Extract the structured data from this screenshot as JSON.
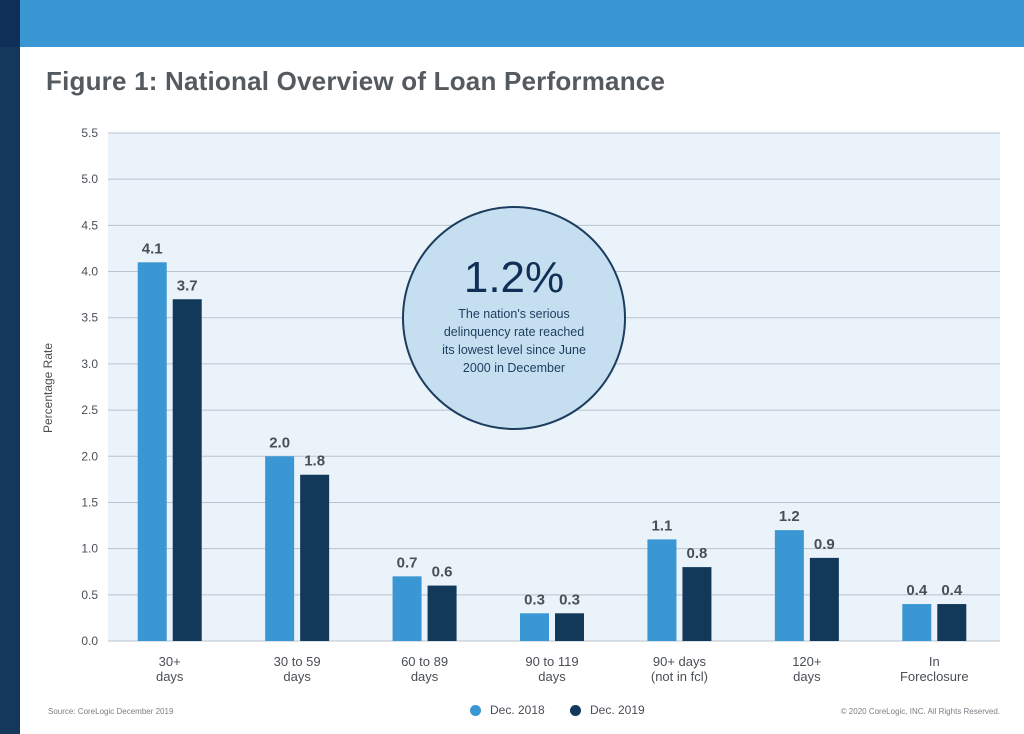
{
  "page": {
    "title": "Figure 1: National Overview of Loan Performance",
    "source": "Source: CoreLogic December 2019",
    "copyright": "© 2020 CoreLogic, INC. All Rights Reserved."
  },
  "colors": {
    "header": "#3b97d3",
    "header_dark": "#0f2f57",
    "sidebar": "#14385c",
    "plot_bg": "#eaf2fa",
    "series1": "#3b97d3",
    "series2": "#12385a",
    "callout_fill": "#c5dff0",
    "callout_stroke": "#1c3d5e"
  },
  "chart_data": {
    "type": "bar",
    "title": "Figure 1: National Overview of Loan Performance",
    "xlabel": "",
    "ylabel": "Percentage Rate",
    "ylim": [
      0,
      5.5
    ],
    "yticks": [
      "0.0",
      "0.5",
      "1.0",
      "1.5",
      "2.0",
      "2.5",
      "3.0",
      "3.5",
      "4.0",
      "4.5",
      "5.0",
      "5.5"
    ],
    "grid": true,
    "legend_position": "bottom-center",
    "categories": [
      [
        "30+",
        "days"
      ],
      [
        "30 to 59",
        "days"
      ],
      [
        "60 to 89",
        "days"
      ],
      [
        "90 to 119",
        "days"
      ],
      [
        "90+ days",
        "(not in fcl)"
      ],
      [
        "120+",
        "days"
      ],
      [
        "In",
        "Foreclosure"
      ]
    ],
    "series": [
      {
        "name": "Dec. 2018",
        "values": [
          4.1,
          2.0,
          0.7,
          0.3,
          1.1,
          1.2,
          0.4
        ],
        "labels": [
          "4.1",
          "2.0",
          "0.7",
          "0.3",
          "1.1",
          "1.2",
          "0.4"
        ]
      },
      {
        "name": "Dec. 2019",
        "values": [
          3.7,
          1.8,
          0.6,
          0.3,
          0.8,
          0.9,
          0.4
        ],
        "labels": [
          "3.7",
          "1.8",
          "0.6",
          "0.3",
          "0.8",
          "0.9",
          "0.4"
        ]
      }
    ],
    "annotation": {
      "value": "1.2%",
      "lines": [
        "The nation's serious",
        "delinquency rate reached",
        "its lowest level since June",
        "2000 in December"
      ]
    }
  }
}
